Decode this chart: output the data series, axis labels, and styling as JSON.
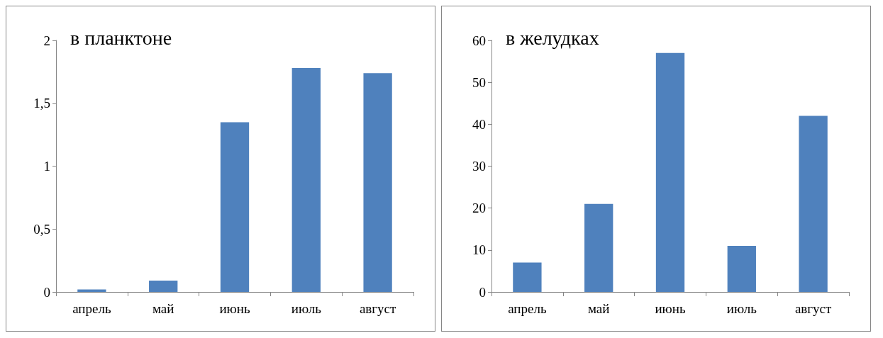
{
  "chart_data": [
    {
      "type": "bar",
      "title": "в планктоне",
      "categories": [
        "апрель",
        "май",
        "июнь",
        "июль",
        "август"
      ],
      "values": [
        0.02,
        0.09,
        1.35,
        1.78,
        1.74
      ],
      "color": "#4f81bd",
      "ylim": [
        0,
        2
      ],
      "yticks": [
        0,
        {
          "value": 0.5,
          "label": "0,5"
        },
        1,
        {
          "value": 1.5,
          "label": "1,5"
        },
        2
      ],
      "grid": false
    },
    {
      "type": "bar",
      "title": "в желудках",
      "categories": [
        "апрель",
        "май",
        "июнь",
        "июль",
        "август"
      ],
      "values": [
        7,
        21,
        57,
        11,
        42
      ],
      "color": "#4f81bd",
      "ylim": [
        0,
        60
      ],
      "yticks": [
        0,
        10,
        20,
        30,
        40,
        50,
        60
      ],
      "grid": false
    }
  ]
}
